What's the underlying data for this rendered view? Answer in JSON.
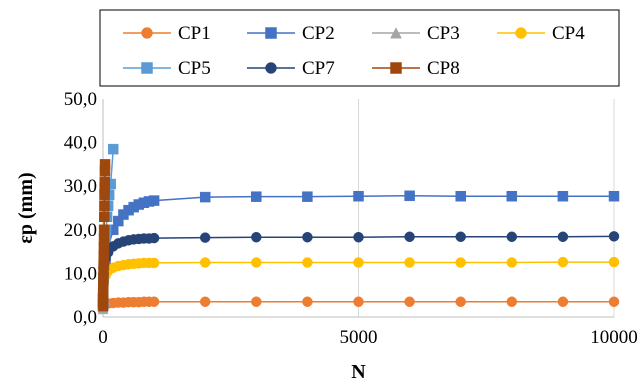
{
  "chart_data": {
    "type": "scatter",
    "xlabel": "N",
    "ylabel": "εp (mm)",
    "xlim": [
      0,
      10000
    ],
    "ylim": [
      0,
      50
    ],
    "x_ticks": [
      0,
      5000,
      10000
    ],
    "x_tick_labels": [
      "0",
      "5000",
      "10000"
    ],
    "y_ticks": [
      0,
      10,
      20,
      30,
      40,
      50
    ],
    "y_tick_labels": [
      "0,0",
      "10,0",
      "20,0",
      "30,0",
      "40,0",
      "50,0"
    ],
    "grid": "vertical",
    "legend_position": "top",
    "series": [
      {
        "name": "CP1",
        "color": "#ED7D31",
        "marker": "circle",
        "x": [
          1,
          2,
          5,
          10,
          20,
          50,
          100,
          200,
          300,
          400,
          500,
          600,
          700,
          800,
          900,
          1000,
          2000,
          3000,
          4000,
          5000,
          6000,
          7000,
          8000,
          9000,
          10000
        ],
        "y": [
          2.2,
          2.4,
          2.6,
          2.8,
          2.9,
          3.0,
          3.1,
          3.2,
          3.3,
          3.3,
          3.4,
          3.4,
          3.4,
          3.5,
          3.5,
          3.5,
          3.5,
          3.5,
          3.5,
          3.5,
          3.5,
          3.5,
          3.5,
          3.5,
          3.5
        ]
      },
      {
        "name": "CP2",
        "color": "#4472C4",
        "marker": "square",
        "x": [
          1,
          2,
          5,
          10,
          20,
          50,
          100,
          200,
          300,
          400,
          500,
          600,
          700,
          800,
          900,
          1000,
          2000,
          3000,
          4000,
          5000,
          6000,
          7000,
          8000,
          9000,
          10000
        ],
        "y": [
          3.0,
          4.5,
          6.5,
          8.5,
          10.5,
          13.0,
          16.0,
          20.0,
          22.0,
          23.5,
          24.5,
          25.2,
          25.8,
          26.2,
          26.5,
          26.7,
          27.5,
          27.6,
          27.6,
          27.7,
          27.8,
          27.7,
          27.7,
          27.7,
          27.7
        ]
      },
      {
        "name": "CP3",
        "color": "#A5A5A5",
        "marker": "triangle",
        "x": [
          1,
          2,
          5,
          10,
          20,
          50
        ],
        "y": [
          1.8,
          2.2,
          2.6,
          3.0,
          3.4,
          3.8
        ]
      },
      {
        "name": "CP4",
        "color": "#FFC000",
        "marker": "circle",
        "x": [
          1,
          2,
          5,
          10,
          20,
          50,
          100,
          200,
          300,
          400,
          500,
          600,
          700,
          800,
          900,
          1000,
          2000,
          3000,
          4000,
          5000,
          6000,
          7000,
          8000,
          9000,
          10000
        ],
        "y": [
          4.0,
          5.0,
          6.5,
          7.5,
          8.5,
          9.5,
          10.5,
          11.3,
          11.7,
          11.9,
          12.1,
          12.2,
          12.3,
          12.4,
          12.4,
          12.4,
          12.5,
          12.5,
          12.5,
          12.5,
          12.5,
          12.5,
          12.5,
          12.6,
          12.6
        ]
      },
      {
        "name": "CP5",
        "color": "#5B9BD5",
        "marker": "square",
        "x": [
          1,
          2,
          5,
          10,
          20,
          30,
          40,
          50,
          60,
          80,
          100,
          120,
          150,
          200
        ],
        "y": [
          3.0,
          4.5,
          7.0,
          9.0,
          12.0,
          14.5,
          16.5,
          18.5,
          20.0,
          23.0,
          25.5,
          28.0,
          30.5,
          38.5
        ]
      },
      {
        "name": "CP7",
        "color": "#264478",
        "marker": "circle",
        "x": [
          1,
          2,
          5,
          10,
          20,
          50,
          100,
          200,
          300,
          400,
          500,
          600,
          700,
          800,
          900,
          1000,
          2000,
          3000,
          4000,
          5000,
          6000,
          7000,
          8000,
          9000,
          10000
        ],
        "y": [
          5.0,
          6.5,
          8.5,
          10.0,
          12.0,
          13.5,
          14.8,
          16.2,
          16.9,
          17.3,
          17.6,
          17.8,
          17.9,
          18.0,
          18.0,
          18.1,
          18.2,
          18.3,
          18.3,
          18.3,
          18.4,
          18.4,
          18.4,
          18.4,
          18.5
        ]
      },
      {
        "name": "CP8",
        "color": "#9E480E",
        "marker": "square",
        "x": [
          1,
          2,
          3,
          5,
          8,
          10,
          12,
          15,
          18,
          20,
          22,
          25,
          28,
          30,
          32,
          35,
          38,
          40
        ],
        "y": [
          2.5,
          3.5,
          5.0,
          7.0,
          9.0,
          10.5,
          12.0,
          14.0,
          16.0,
          18.0,
          20.0,
          23.0,
          25.5,
          28.0,
          29.5,
          31.0,
          33.5,
          35.0
        ]
      }
    ]
  }
}
